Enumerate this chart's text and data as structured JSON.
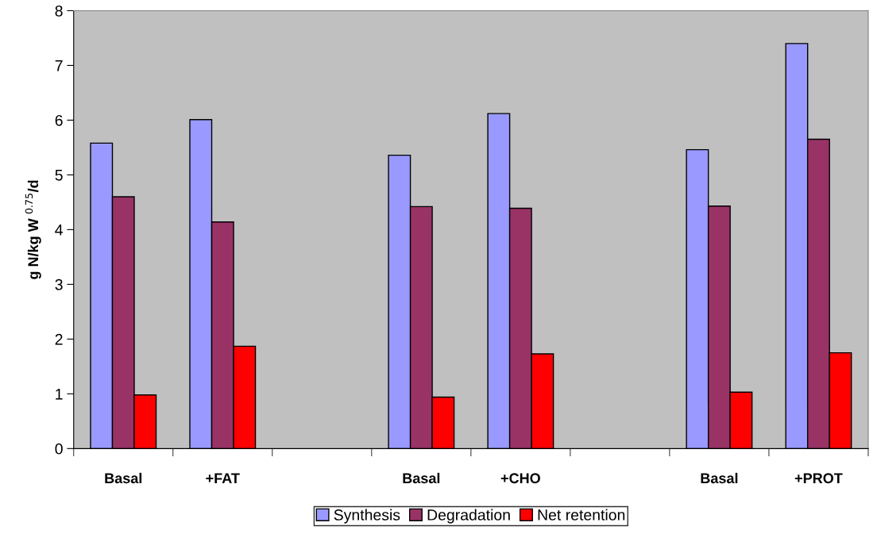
{
  "chart_data": {
    "type": "bar",
    "ylabel": "g N/kg W $^{0.75}$/d",
    "categories": [
      "Basal",
      "+FAT",
      null,
      "Basal",
      "+CHO",
      null,
      "Basal",
      "+PROT"
    ],
    "series": [
      {
        "name": "Synthesis",
        "color": "#9999ff",
        "values": [
          5.58,
          6.01,
          null,
          5.36,
          6.12,
          null,
          5.46,
          7.4
        ]
      },
      {
        "name": "Degradation",
        "color": "#993366",
        "values": [
          4.6,
          4.14,
          null,
          4.42,
          4.39,
          null,
          4.43,
          5.65
        ]
      },
      {
        "name": "Net retention",
        "color": "#ff0000",
        "values": [
          0.98,
          1.87,
          null,
          0.94,
          1.73,
          null,
          1.03,
          1.75
        ]
      }
    ],
    "ylim": [
      0,
      8
    ],
    "yticks": [
      0,
      1,
      2,
      3,
      4,
      5,
      6,
      7,
      8
    ],
    "grid": false,
    "legend": "bottom"
  }
}
